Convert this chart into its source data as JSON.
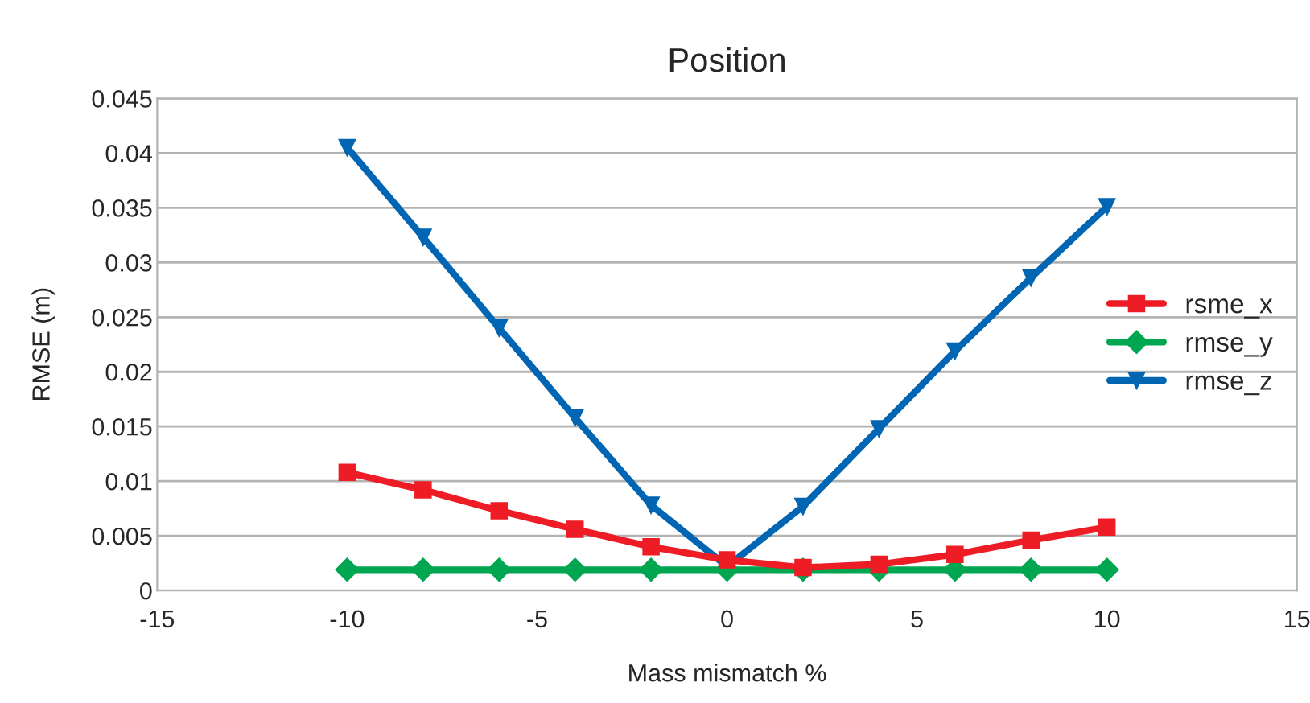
{
  "chart_data": {
    "type": "line",
    "title": "Position",
    "xlabel": "Mass mismatch %",
    "ylabel": "RMSE (m)",
    "x": [
      -10,
      -8,
      -6,
      -4,
      -2,
      0,
      2,
      4,
      6,
      8,
      10
    ],
    "series": [
      {
        "name": "rsme_x",
        "color": "#ee1c25",
        "marker": "square",
        "values": [
          0.0108,
          0.0092,
          0.0073,
          0.0056,
          0.004,
          0.0028,
          0.0021,
          0.0024,
          0.0033,
          0.0046,
          0.0058
        ]
      },
      {
        "name": "rmse_y",
        "color": "#00a650",
        "marker": "diamond",
        "values": [
          0.0019,
          0.0019,
          0.0019,
          0.0019,
          0.0019,
          0.0019,
          0.0019,
          0.0019,
          0.0019,
          0.0019,
          0.0019
        ]
      },
      {
        "name": "rmse_z",
        "color": "#0066b3",
        "marker": "triangle",
        "values": [
          0.0405,
          0.0323,
          0.024,
          0.0158,
          0.0078,
          0.0022,
          0.0077,
          0.0148,
          0.0219,
          0.0286,
          0.0351
        ]
      }
    ],
    "xlim": [
      -15,
      15
    ],
    "xticks": [
      -15,
      -10,
      -5,
      0,
      5,
      10,
      15
    ],
    "ylim": [
      0,
      0.045
    ],
    "yticks": [
      0,
      0.005,
      0.01,
      0.015,
      0.02,
      0.025,
      0.03,
      0.035,
      0.04,
      0.045
    ],
    "grid": "y",
    "legend": "right",
    "line_style": "solid"
  }
}
